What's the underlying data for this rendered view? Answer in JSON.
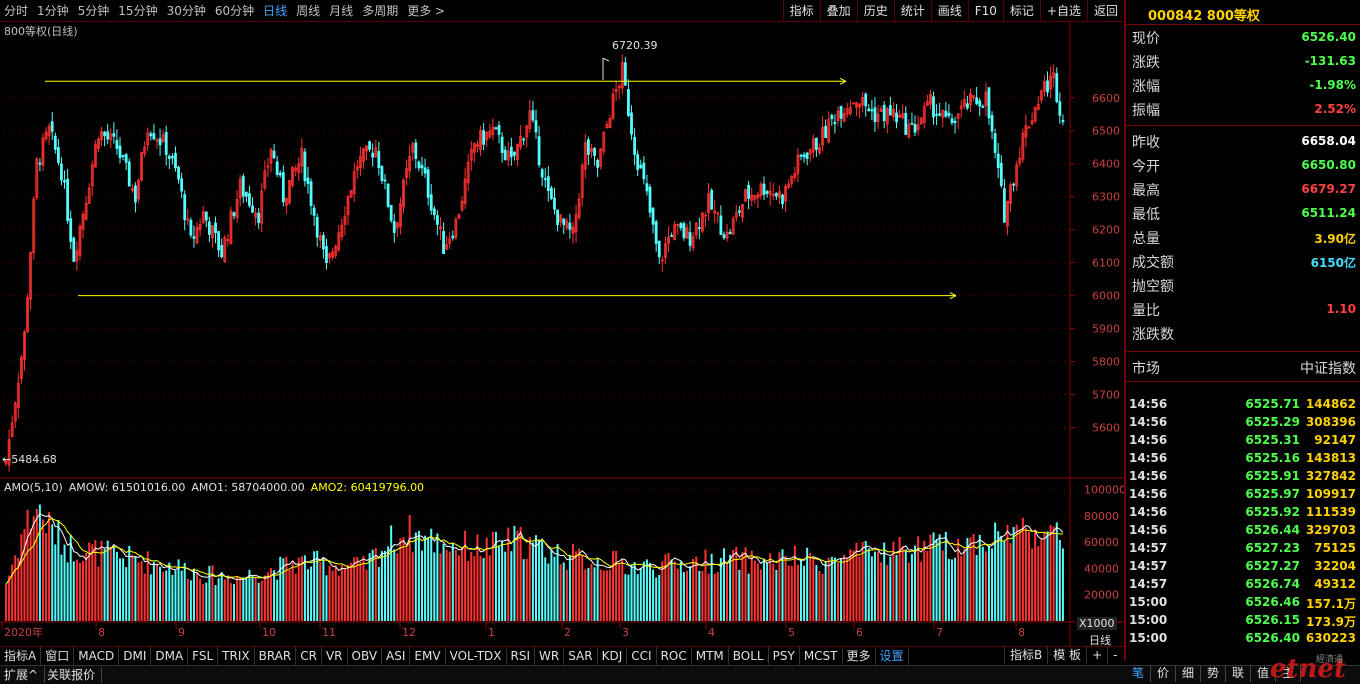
{
  "toolbar": {
    "periods": [
      "分时",
      "1分钟",
      "5分钟",
      "15分钟",
      "30分钟",
      "60分钟",
      "日线",
      "周线",
      "月线",
      "多周期",
      "更多 >"
    ],
    "active_period": "日线",
    "buttons": [
      "指标",
      "叠加",
      "历史",
      "统计",
      "画线",
      "F10",
      "标记",
      "+自选",
      "返回"
    ]
  },
  "chart": {
    "title": "800等权(日线)",
    "high_marker": "6720.39",
    "low_marker": "←5484.68",
    "price_ticks": [
      "6600",
      "6500",
      "6400",
      "6300",
      "6200",
      "6100",
      "6000",
      "5900",
      "5800",
      "5700",
      "5600"
    ],
    "volume_ticks": [
      "100000",
      "80000",
      "60000",
      "40000",
      "20000"
    ],
    "volume_unit": "X1000",
    "date_labels": [
      "2020年",
      "8",
      "9",
      "10",
      "11",
      "12",
      "1",
      "2",
      "3",
      "4",
      "5",
      "6",
      "7",
      "8"
    ],
    "period_label": "日线",
    "indicator_caption": {
      "name": "AMO(5,10)",
      "amow": "AMOW: 61501016.00",
      "amo1": "AMO1: 58704000.00",
      "amo2": "AMO2: 60419796.00"
    }
  },
  "chart_data": {
    "type": "candlestick",
    "title": "800等权(日线)",
    "ylim": [
      5450,
      6760
    ],
    "resistance_line": 6650,
    "support_line": 6000,
    "period_high": 6720.39,
    "period_low": 5484.68,
    "colors": {
      "up": "#ff3232",
      "down": "#54fcfc",
      "ma": "#ffff00",
      "line": "#ffffff"
    },
    "close_waypoints": [
      [
        0,
        5500
      ],
      [
        6,
        5880
      ],
      [
        10,
        6400
      ],
      [
        14,
        6500
      ],
      [
        18,
        6380
      ],
      [
        22,
        6120
      ],
      [
        26,
        6300
      ],
      [
        30,
        6500
      ],
      [
        36,
        6450
      ],
      [
        42,
        6300
      ],
      [
        46,
        6520
      ],
      [
        52,
        6450
      ],
      [
        56,
        6350
      ],
      [
        60,
        6160
      ],
      [
        64,
        6250
      ],
      [
        70,
        6130
      ],
      [
        76,
        6330
      ],
      [
        82,
        6250
      ],
      [
        86,
        6450
      ],
      [
        90,
        6300
      ],
      [
        96,
        6420
      ],
      [
        100,
        6250
      ],
      [
        104,
        6080
      ],
      [
        108,
        6200
      ],
      [
        114,
        6400
      ],
      [
        120,
        6450
      ],
      [
        126,
        6200
      ],
      [
        132,
        6450
      ],
      [
        136,
        6350
      ],
      [
        142,
        6150
      ],
      [
        146,
        6220
      ],
      [
        152,
        6460
      ],
      [
        158,
        6500
      ],
      [
        164,
        6400
      ],
      [
        170,
        6550
      ],
      [
        176,
        6300
      ],
      [
        180,
        6220
      ],
      [
        184,
        6180
      ],
      [
        188,
        6450
      ],
      [
        192,
        6390
      ],
      [
        196,
        6560
      ],
      [
        200,
        6680
      ],
      [
        204,
        6450
      ],
      [
        208,
        6300
      ],
      [
        212,
        6100
      ],
      [
        216,
        6200
      ],
      [
        222,
        6180
      ],
      [
        228,
        6280
      ],
      [
        234,
        6180
      ],
      [
        240,
        6300
      ],
      [
        246,
        6330
      ],
      [
        252,
        6300
      ],
      [
        258,
        6420
      ],
      [
        264,
        6470
      ],
      [
        270,
        6560
      ],
      [
        276,
        6600
      ],
      [
        282,
        6550
      ],
      [
        288,
        6550
      ],
      [
        294,
        6500
      ],
      [
        300,
        6580
      ],
      [
        306,
        6520
      ],
      [
        312,
        6580
      ],
      [
        318,
        6600
      ],
      [
        324,
        6250
      ],
      [
        330,
        6480
      ],
      [
        336,
        6620
      ],
      [
        340,
        6660
      ],
      [
        343,
        6530
      ]
    ],
    "volume_ylim": [
      0,
      105000
    ],
    "volume_waypoints": [
      [
        0,
        28000
      ],
      [
        6,
        70000
      ],
      [
        10,
        85000
      ],
      [
        14,
        70000
      ],
      [
        20,
        55000
      ],
      [
        28,
        52000
      ],
      [
        36,
        48000
      ],
      [
        46,
        44000
      ],
      [
        56,
        40000
      ],
      [
        66,
        34000
      ],
      [
        76,
        33000
      ],
      [
        86,
        38000
      ],
      [
        96,
        44000
      ],
      [
        106,
        42000
      ],
      [
        116,
        40000
      ],
      [
        124,
        58000
      ],
      [
        130,
        66000
      ],
      [
        138,
        60000
      ],
      [
        146,
        56000
      ],
      [
        156,
        54000
      ],
      [
        166,
        60000
      ],
      [
        176,
        52000
      ],
      [
        186,
        46000
      ],
      [
        196,
        44000
      ],
      [
        206,
        40000
      ],
      [
        216,
        42000
      ],
      [
        226,
        44000
      ],
      [
        236,
        46000
      ],
      [
        246,
        44000
      ],
      [
        256,
        46000
      ],
      [
        266,
        44000
      ],
      [
        276,
        48000
      ],
      [
        286,
        52000
      ],
      [
        296,
        54000
      ],
      [
        306,
        56000
      ],
      [
        316,
        60000
      ],
      [
        326,
        66000
      ],
      [
        334,
        68000
      ],
      [
        343,
        60000
      ]
    ]
  },
  "stock": {
    "code_name": "000842 800等权"
  },
  "quote": [
    {
      "label": "现价",
      "value": "6526.40",
      "color": "#4dff4d"
    },
    {
      "label": "涨跌",
      "value": "-131.63",
      "color": "#4dff4d"
    },
    {
      "label": "涨幅",
      "value": "-1.98%",
      "color": "#4dff4d"
    },
    {
      "label": "振幅",
      "value": "2.52%",
      "color": "#ff4040"
    },
    {
      "label": "昨收",
      "value": "6658.04",
      "color": "#ffffff"
    },
    {
      "label": "今开",
      "value": "6650.80",
      "color": "#4dff4d"
    },
    {
      "label": "最高",
      "value": "6679.27",
      "color": "#ff4040"
    },
    {
      "label": "最低",
      "value": "6511.24",
      "color": "#4dff4d"
    },
    {
      "label": "总量",
      "value": "3.90亿",
      "color": "#ffd200"
    },
    {
      "label": "成交额",
      "value": "6150亿",
      "color": "#3fe0ff"
    },
    {
      "label": "抛空额",
      "value": "",
      "color": "#ffffff"
    },
    {
      "label": "量比",
      "value": "1.10",
      "color": "#ff4040"
    },
    {
      "label": "涨跌数",
      "value": "",
      "color": "#ffffff"
    }
  ],
  "market": {
    "label": "市场",
    "value": "中证指数"
  },
  "ticks": [
    {
      "time": "14:56",
      "price": "6525.71",
      "vol": "144862"
    },
    {
      "time": "14:56",
      "price": "6525.29",
      "vol": "308396"
    },
    {
      "time": "14:56",
      "price": "6525.31",
      "vol": "92147"
    },
    {
      "time": "14:56",
      "price": "6525.16",
      "vol": "143813"
    },
    {
      "time": "14:56",
      "price": "6525.91",
      "vol": "327842"
    },
    {
      "time": "14:56",
      "price": "6525.97",
      "vol": "109917"
    },
    {
      "time": "14:56",
      "price": "6525.92",
      "vol": "111539"
    },
    {
      "time": "14:56",
      "price": "6526.44",
      "vol": "329703"
    },
    {
      "time": "14:57",
      "price": "6527.23",
      "vol": "75125"
    },
    {
      "time": "14:57",
      "price": "6527.27",
      "vol": "32204"
    },
    {
      "time": "14:57",
      "price": "6526.74",
      "vol": "49312"
    },
    {
      "time": "15:00",
      "price": "6526.46",
      "vol": "157.1万"
    },
    {
      "time": "15:00",
      "price": "6526.15",
      "vol": "173.9万"
    },
    {
      "time": "15:00",
      "price": "6526.40",
      "vol": "630223"
    }
  ],
  "indicator_tabs": [
    "指标A",
    "窗口",
    "MACD",
    "DMI",
    "DMA",
    "FSL",
    "TRIX",
    "BRAR",
    "CR",
    "VR",
    "OBV",
    "ASI",
    "EMV",
    "VOL-TDX",
    "RSI",
    "WR",
    "SAR",
    "KDJ",
    "CCI",
    "ROC",
    "MTM",
    "BOLL",
    "PSY",
    "MCST",
    "更多",
    "设置"
  ],
  "indicator_selected": "设置",
  "indicator_right": [
    "指标B",
    "模 板",
    "+",
    "-"
  ],
  "status": [
    "扩展^",
    "关联报价"
  ],
  "panel_tabs": [
    "笔",
    "价",
    "细",
    "势",
    "联",
    "值",
    "主"
  ],
  "panel_tab_selected": "笔",
  "watermark": "etnet",
  "watermark_sub": "經濟通"
}
